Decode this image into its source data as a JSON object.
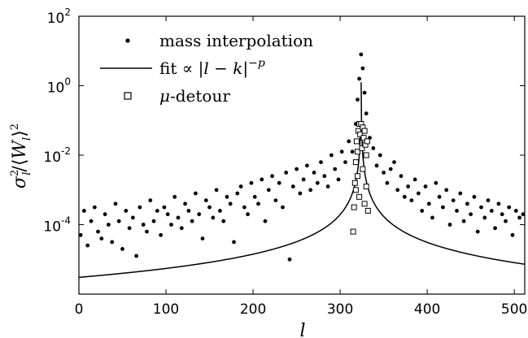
{
  "chart_data": {
    "type": "scatter",
    "xlabel": "l",
    "ylabel": "σ_l² / ⟨W_l⟩²",
    "ylabel_parts": {
      "sigma": "σ",
      "sigma_sup": "2",
      "sigma_sub": "l",
      "slash": "/",
      "w_open": "⟨",
      "w": "W",
      "w_sub": "l",
      "w_close": "⟩",
      "w_sup": "2"
    },
    "xlim": [
      0,
      512
    ],
    "ylim_log10": [
      -6,
      2
    ],
    "scale": {
      "y": "log"
    },
    "x_ticks": [
      0,
      100,
      200,
      300,
      400,
      500
    ],
    "x_tick_labels": [
      "0",
      "100",
      "200",
      "300",
      "400",
      "500"
    ],
    "y_ticks_log10": [
      -4,
      -2,
      0,
      2
    ],
    "y_tick_labels": [
      {
        "base": "10",
        "exp": "-4"
      },
      {
        "base": "10",
        "exp": "-2"
      },
      {
        "base": "10",
        "exp": "0"
      },
      {
        "base": "10",
        "exp": "2"
      }
    ],
    "grid": false,
    "legend_position": "top-left",
    "legend": [
      {
        "label": "mass interpolation",
        "marker": "dot"
      },
      {
        "label_prefix": "fit ∝ |",
        "label_var": "l − k",
        "label_mid": "|",
        "label_exp": "−p",
        "marker": "line"
      },
      {
        "label_var": "μ",
        "label_suffix": "-detour",
        "marker": "square"
      }
    ],
    "peak_k": 324,
    "fit": {
      "k": 324,
      "amplitude_log10": -1.5,
      "p": 1.6,
      "x_range": [
        0,
        512
      ]
    },
    "series": [
      {
        "kind": "dots",
        "x": [
          2,
          6,
          10,
          14,
          18,
          22,
          26,
          30,
          34,
          38,
          42,
          46,
          50,
          54,
          58,
          62,
          66,
          70,
          74,
          78,
          82,
          86,
          90,
          94,
          98,
          102,
          106,
          110,
          114,
          118,
          122,
          126,
          130,
          134,
          138,
          142,
          146,
          150,
          154,
          158,
          162,
          166,
          170,
          174,
          178,
          182,
          186,
          190,
          194,
          198,
          202,
          206,
          210,
          214,
          218,
          222,
          226,
          230,
          234,
          238,
          242,
          246,
          250,
          254,
          258,
          262,
          266,
          270,
          274,
          278,
          282,
          286,
          290,
          294,
          298,
          302,
          306,
          310,
          314,
          318,
          320,
          322,
          324,
          326,
          328,
          330,
          334,
          338,
          342,
          346,
          350,
          354,
          358,
          362,
          366,
          370,
          374,
          378,
          382,
          386,
          390,
          394,
          398,
          402,
          406,
          410,
          414,
          418,
          422,
          426,
          430,
          434,
          438,
          442,
          446,
          450,
          454,
          458,
          462,
          466,
          470,
          474,
          478,
          482,
          486,
          490,
          494,
          498,
          502,
          506,
          510
        ],
        "y_log10": [
          -4.3,
          -3.6,
          -4.6,
          -3.9,
          -3.5,
          -4.2,
          -4.4,
          -3.7,
          -4.0,
          -4.5,
          -3.4,
          -3.9,
          -4.7,
          -3.6,
          -4.1,
          -3.8,
          -4.9,
          -3.5,
          -4.0,
          -4.2,
          -3.3,
          -3.9,
          -3.6,
          -4.3,
          -3.5,
          -3.7,
          -4.0,
          -3.2,
          -3.8,
          -4.1,
          -3.4,
          -3.6,
          -3.9,
          -3.1,
          -3.7,
          -4.4,
          -3.3,
          -3.5,
          -3.8,
          -3.0,
          -3.6,
          -3.9,
          -3.2,
          -3.4,
          -4.5,
          -3.1,
          -2.9,
          -3.5,
          -3.7,
          -2.8,
          -3.2,
          -3.4,
          -2.7,
          -3.9,
          -3.0,
          -2.6,
          -3.3,
          -2.8,
          -3.5,
          -2.5,
          -5.0,
          -2.9,
          -2.4,
          -3.1,
          -2.7,
          -2.3,
          -3.0,
          -2.5,
          -2.8,
          -2.2,
          -2.6,
          -2.9,
          -2.0,
          -2.4,
          -2.7,
          -1.9,
          -2.2,
          -1.6,
          -1.9,
          -1.1,
          -0.4,
          0.2,
          0.9,
          0.5,
          -0.2,
          -0.8,
          -1.5,
          -1.8,
          -2.3,
          -2.0,
          -2.5,
          -2.8,
          -2.4,
          -2.2,
          -3.0,
          -2.6,
          -3.2,
          -2.9,
          -3.3,
          -2.7,
          -3.1,
          -3.6,
          -2.9,
          -3.4,
          -3.8,
          -2.8,
          -3.2,
          -3.5,
          -3.0,
          -4.0,
          -3.3,
          -3.6,
          -3.1,
          -3.9,
          -3.4,
          -3.7,
          -3.2,
          -4.2,
          -3.5,
          -3.8,
          -3.3,
          -3.6,
          -4.1,
          -3.4,
          -3.7,
          -3.9,
          -3.5,
          -4.3,
          -3.6,
          -3.8,
          -3.7
        ]
      },
      {
        "kind": "squares",
        "x": [
          315,
          316,
          317,
          318,
          318,
          319,
          320,
          320,
          321,
          322,
          322,
          323,
          324,
          325,
          326,
          326,
          327,
          328,
          328,
          329,
          330,
          330,
          331,
          332
        ],
        "y_log10": [
          -4.2,
          -3.5,
          -2.8,
          -2.2,
          -3.0,
          -1.6,
          -1.9,
          -2.6,
          -1.3,
          -1.1,
          -3.2,
          -1.4,
          -1.1,
          -1.8,
          -1.2,
          -2.4,
          -1.5,
          -1.3,
          -3.4,
          -1.7,
          -2.0,
          -2.9,
          -1.6,
          -3.6
        ]
      }
    ]
  }
}
